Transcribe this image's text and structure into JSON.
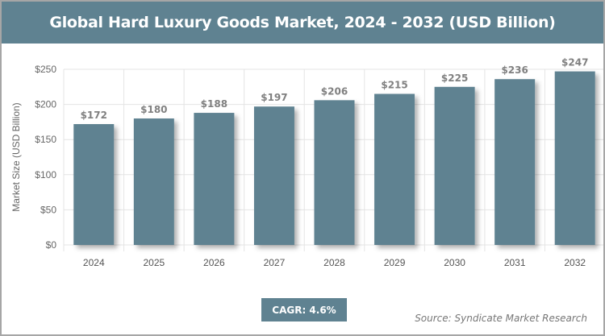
{
  "chart_data": {
    "type": "bar",
    "title": "Global Hard Luxury Goods Market, 2024 - 2032 (USD Billion)",
    "ylabel": "Market Size (USD Billion)",
    "xlabel": "",
    "categories": [
      "2024",
      "2025",
      "2026",
      "2027",
      "2028",
      "2029",
      "2030",
      "2031",
      "2032"
    ],
    "values": [
      172,
      180,
      188,
      197,
      206,
      215,
      225,
      236,
      247
    ],
    "data_labels": [
      "$172",
      "$180",
      "$188",
      "$197",
      "$206",
      "$215",
      "$225",
      "$236",
      "$247"
    ],
    "ylim": [
      0,
      250
    ],
    "yticks": [
      0,
      50,
      100,
      150,
      200,
      250
    ],
    "ytick_labels": [
      "$0",
      "$50",
      "$100",
      "$150",
      "$200",
      "$250"
    ],
    "grid": true,
    "bar_color": "#5f8291"
  },
  "cagr": "CAGR: 4.6%",
  "source": "Source: Syndicate Market Research"
}
